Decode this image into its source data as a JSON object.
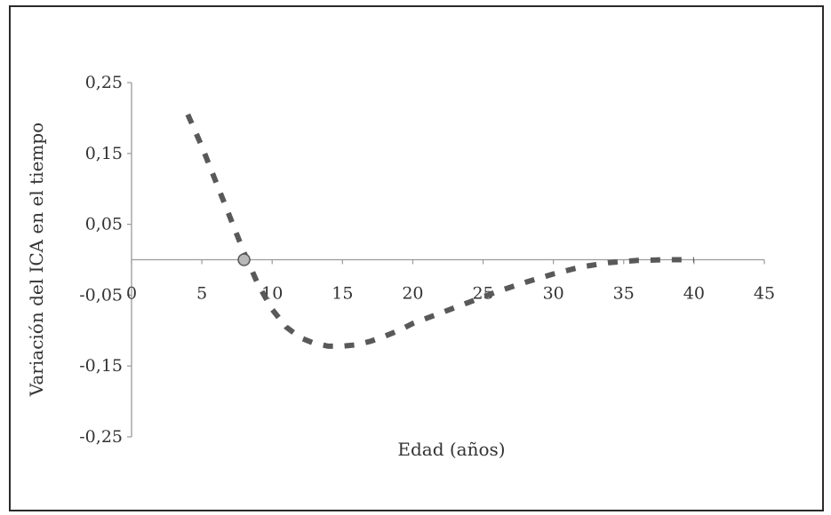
{
  "chart_data": {
    "type": "line",
    "title": "",
    "xlabel": "Edad (años)",
    "ylabel": "Variación del ICA en el tiempo",
    "xlim": [
      0,
      45
    ],
    "ylim": [
      -0.25,
      0.25
    ],
    "x_ticks": [
      0,
      5,
      10,
      15,
      20,
      25,
      30,
      35,
      40,
      45
    ],
    "x_tick_labels": [
      "0",
      "5",
      "10",
      "15",
      "20",
      "25",
      "30",
      "35",
      "40",
      "45"
    ],
    "y_ticks": [
      0.25,
      0.15,
      0.05,
      -0.05,
      -0.15,
      -0.25
    ],
    "y_tick_labels": [
      "0,25",
      "0,15",
      "0,05",
      "-0,05",
      "-0,15",
      "-0,25"
    ],
    "grid": false,
    "legend": "none",
    "series": [
      {
        "line_style": "dashed",
        "color": "#595959",
        "x": [
          4,
          5,
          6,
          7,
          8,
          9,
          10,
          11,
          12,
          13,
          14,
          15,
          16,
          17,
          18,
          19,
          20,
          22,
          24,
          26,
          28,
          30,
          32,
          34,
          36,
          38,
          40
        ],
        "y": [
          0.205,
          0.16,
          0.11,
          0.06,
          0.01,
          -0.035,
          -0.07,
          -0.095,
          -0.11,
          -0.118,
          -0.122,
          -0.122,
          -0.12,
          -0.115,
          -0.108,
          -0.1,
          -0.09,
          -0.075,
          -0.06,
          -0.045,
          -0.032,
          -0.02,
          -0.01,
          -0.004,
          -0.001,
          0.0,
          0.0
        ]
      }
    ],
    "annotations": [
      {
        "type": "point",
        "x": 8,
        "y": 0.0,
        "color": "#b8b8b8"
      }
    ]
  }
}
